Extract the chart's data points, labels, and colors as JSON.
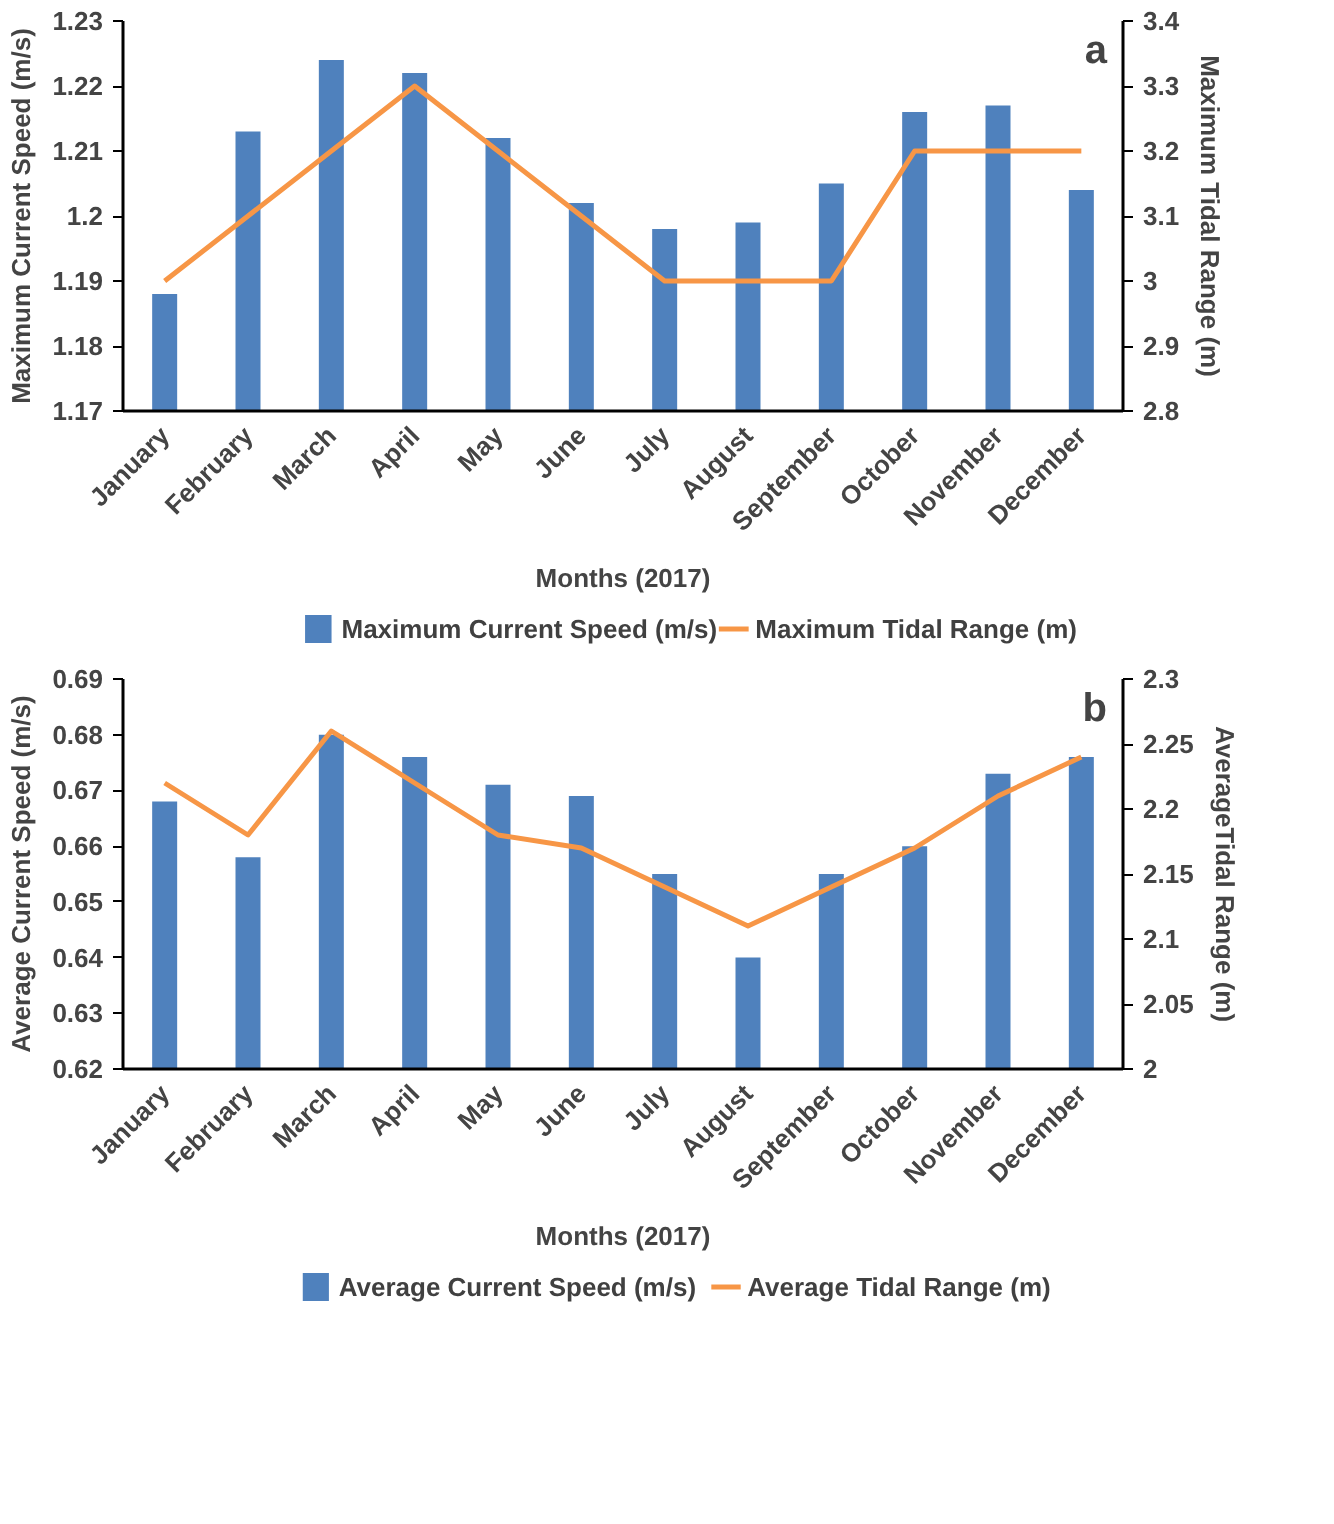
{
  "chart_data": [
    {
      "type": "bar",
      "annotations": [
        "a"
      ],
      "xlabel": "Months (2017)",
      "ylabel": "Maximum Current Speed (m/s)",
      "y2label": "Maximum Tidal Range (m)",
      "categories": [
        "January",
        "February",
        "March",
        "April",
        "May",
        "June",
        "July",
        "August",
        "September",
        "October",
        "November",
        "December"
      ],
      "series": [
        {
          "name": "Maximum Current Speed (m/s)",
          "color": "#4f81bd",
          "values": [
            1.188,
            1.213,
            1.224,
            1.222,
            1.212,
            1.202,
            1.198,
            1.199,
            1.205,
            1.216,
            1.217,
            1.204
          ]
        },
        {
          "name": "Maximum Tidal Range (m)",
          "type": "line",
          "axis": "y2",
          "color": "#f79646",
          "values": [
            3.0,
            3.1,
            3.2,
            3.3,
            3.2,
            3.1,
            3.0,
            3.0,
            3.0,
            3.2,
            3.2,
            3.2
          ]
        }
      ],
      "ylim": [
        1.17,
        1.23
      ],
      "yticks": [
        1.17,
        1.18,
        1.19,
        {
          "value": 1.2,
          "label": "1.2"
        },
        1.21,
        1.22,
        1.23
      ],
      "y2lim": [
        2.8,
        3.4
      ],
      "y2ticks": [
        2.8,
        2.9,
        {
          "value": 3.0,
          "label": "3"
        },
        3.1,
        3.2,
        3.3,
        3.4
      ],
      "grid": false,
      "legend": "bottom"
    },
    {
      "type": "bar",
      "annotations": [
        "b"
      ],
      "xlabel": "Months (2017)",
      "ylabel": "Average Current Speed (m/s)",
      "y2label": "AverageTidal Range (m)",
      "categories": [
        "January",
        "February",
        "March",
        "April",
        "May",
        "June",
        "July",
        "August",
        "September",
        "October",
        "November",
        "December"
      ],
      "series": [
        {
          "name": "Average Current Speed (m/s)",
          "color": "#4f81bd",
          "values": [
            0.668,
            0.658,
            0.68,
            0.676,
            0.671,
            0.669,
            0.655,
            0.64,
            0.655,
            0.66,
            0.673,
            0.676
          ]
        },
        {
          "name": "Average Tidal Range (m)",
          "type": "line",
          "axis": "y2",
          "color": "#f79646",
          "values": [
            2.22,
            2.18,
            2.26,
            2.22,
            2.18,
            2.17,
            2.14,
            2.11,
            2.14,
            2.17,
            2.21,
            2.24
          ]
        }
      ],
      "ylim": [
        0.62,
        0.69
      ],
      "yticks": [
        0.62,
        0.63,
        0.64,
        0.65,
        0.66,
        0.67,
        0.68,
        0.69
      ],
      "y2lim": [
        2.0,
        2.3
      ],
      "y2ticks": [
        {
          "value": 2.0,
          "label": "2"
        },
        2.05,
        {
          "value": 2.1,
          "label": "2.1"
        },
        2.15,
        {
          "value": 2.2,
          "label": "2.2"
        },
        2.25,
        {
          "value": 2.3,
          "label": "2.3"
        }
      ],
      "grid": false,
      "legend": "bottom"
    }
  ]
}
